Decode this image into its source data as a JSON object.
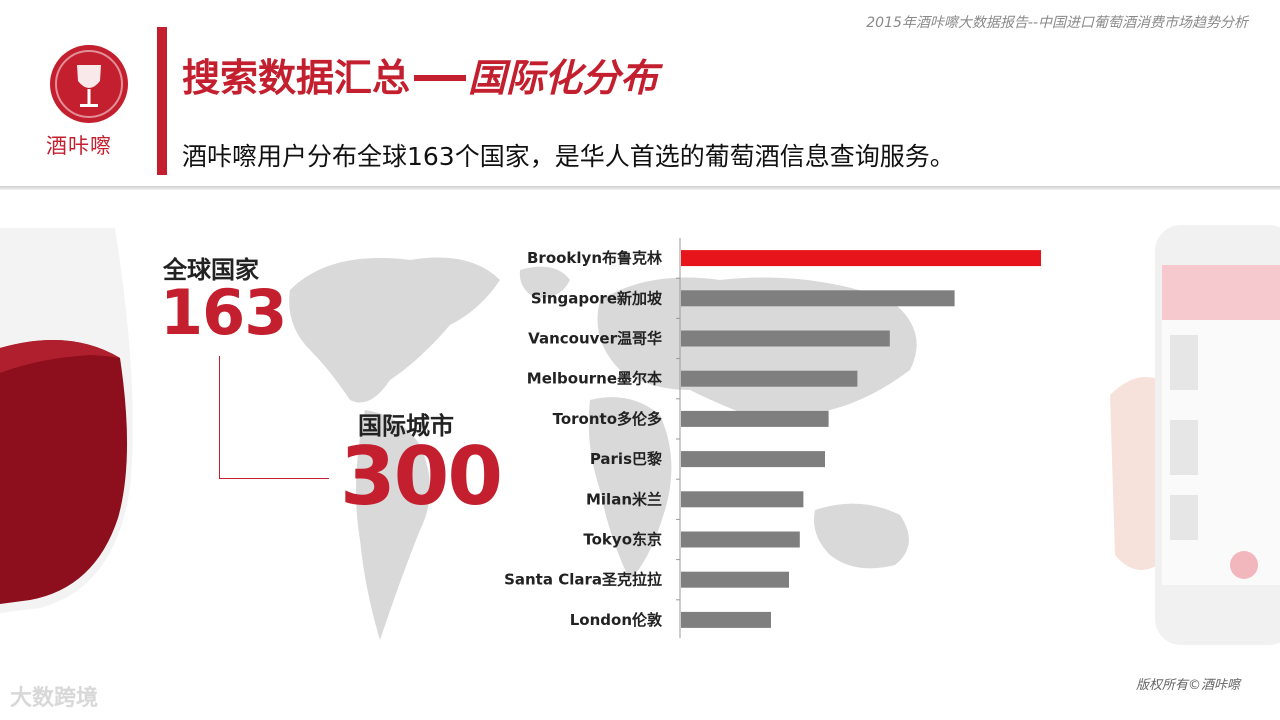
{
  "header": {
    "top_note": "2015年酒咔嚓大数据报告--中国进口葡萄酒消费市场趋势分析",
    "logo_text": "酒咔嚓",
    "title_main": "搜索数据汇总",
    "title_sub": "国际化分布",
    "subtitle": "酒咔嚓用户分布全球163个国家，是华人首选的葡萄酒信息查询服务。"
  },
  "stats": {
    "countries_label": "全球国家",
    "countries_value": "163",
    "cities_label": "国际城市",
    "cities_value": "300"
  },
  "footer": {
    "copyright": "版权所有©酒咔嚓",
    "watermark": "大数跨境"
  },
  "colors": {
    "brand_red": "#c41f2e",
    "highlight_bar": "#e8141c",
    "bar_gray": "#7f7f7f"
  },
  "chart_data": {
    "type": "bar",
    "orientation": "horizontal",
    "categories": [
      "Brooklyn布鲁克林",
      "Singapore新加坡",
      "Vancouver温哥华",
      "Melbourne墨尔本",
      "Toronto多伦多",
      "Paris巴黎",
      "Milan米兰",
      "Tokyo东京",
      "Santa Clara圣克拉拉",
      "London伦敦"
    ],
    "values": [
      100,
      76,
      58,
      49,
      41,
      40,
      34,
      33,
      30,
      25
    ],
    "highlight_index": 0,
    "xlim": [
      0,
      100
    ],
    "grid": false,
    "title": "",
    "xlabel": "",
    "ylabel": ""
  }
}
